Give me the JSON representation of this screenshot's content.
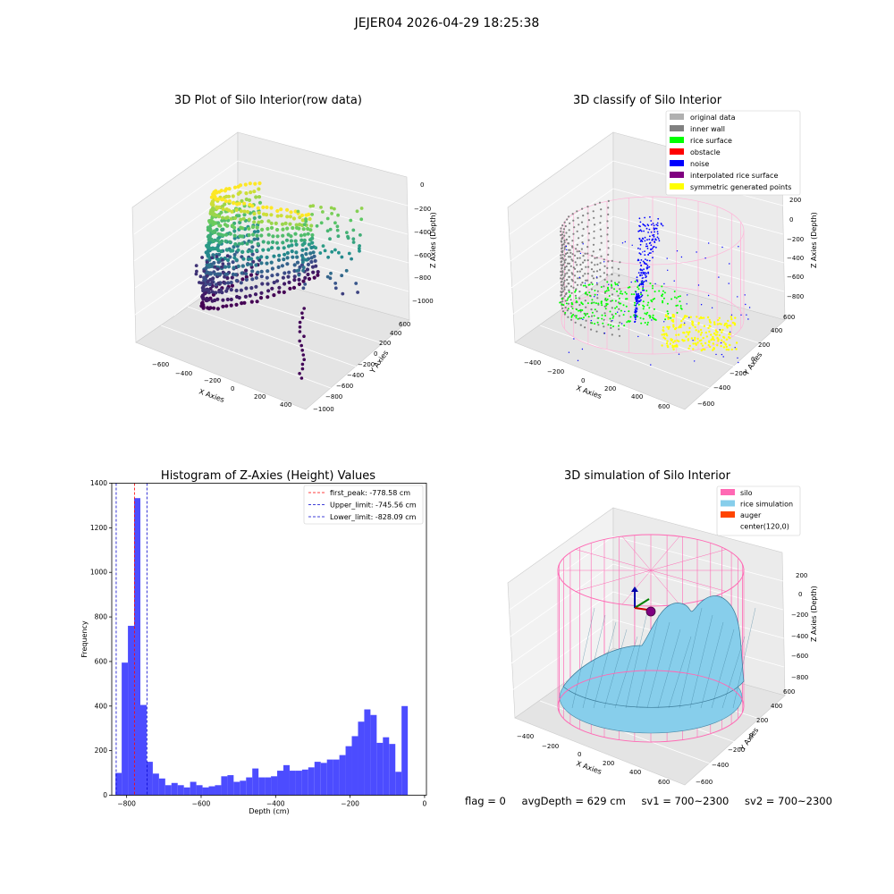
{
  "figure_title": "JEJER04 2026-04-29 18:25:38",
  "footer": {
    "flag": "flag = 0",
    "avg": "avgDepth = 629 cm",
    "sv1": "sv1 = 700~2300",
    "sv2": "sv2 = 700~2300"
  },
  "colors": {
    "hist_bar": "#4c4cff",
    "peak_line": "#ff0000",
    "limit_line": "#0000cc",
    "silo": "#ff69b4",
    "rice": "#87ceeb",
    "auger": "#ff4500"
  },
  "chart_data": [
    {
      "type": "scatter",
      "dimensions": 3,
      "title": "3D Plot of Silo Interior(row data)",
      "xlabel": "X Axies",
      "ylabel": "Y Axies",
      "zlabel": "Z Axies (Depth)",
      "x_ticks": [
        "−600",
        "−400",
        "−200",
        "0",
        "200",
        "400"
      ],
      "y_ticks": [
        "600",
        "400",
        "200",
        "0",
        "−200",
        "−400",
        "−600",
        "−800",
        "−1000"
      ],
      "z_ticks": [
        "0",
        "−200",
        "−400",
        "−600",
        "−800",
        "−1000"
      ],
      "colormap": "viridis"
    },
    {
      "type": "scatter",
      "dimensions": 3,
      "title": "3D classify of Silo Interior",
      "xlabel": "X Axies",
      "ylabel": "Y Axies",
      "zlabel": "Z Axies (Depth)",
      "x_ticks": [
        "−400",
        "−200",
        "0",
        "200",
        "400",
        "600"
      ],
      "y_ticks": [
        "600",
        "400",
        "200",
        "0",
        "−200",
        "−400",
        "−600"
      ],
      "z_ticks": [
        "200",
        "0",
        "−200",
        "−400",
        "−600",
        "−800"
      ],
      "legend_position": "top-right",
      "legend": [
        {
          "label": "original data",
          "color": "#b0b0b0"
        },
        {
          "label": "inner wall",
          "color": "#808080"
        },
        {
          "label": "rice surface",
          "color": "#00ff00"
        },
        {
          "label": "obstacle",
          "color": "#ff0000"
        },
        {
          "label": "noise",
          "color": "#0000ff"
        },
        {
          "label": "interpolated rice surface",
          "color": "#800080"
        },
        {
          "label": "symmetric generated points",
          "color": "#ffff00"
        }
      ]
    },
    {
      "type": "bar",
      "title": "Histogram of Z-Axies (Height) Values",
      "xlabel": "Depth (cm)",
      "ylabel": "Frequency",
      "xlim": [
        -840,
        5
      ],
      "ylim": [
        0,
        1400
      ],
      "x_ticks": [
        -800,
        -600,
        -400,
        -200,
        0
      ],
      "x_tick_labels": [
        "−800",
        "−600",
        "−400",
        "−200",
        "0"
      ],
      "y_ticks": [
        0,
        200,
        400,
        600,
        800,
        1000,
        1200,
        1400
      ],
      "bin_edges_start": -830,
      "bin_width": 16.7,
      "values": [
        100,
        595,
        760,
        1333,
        405,
        150,
        97,
        75,
        45,
        55,
        45,
        35,
        60,
        45,
        35,
        40,
        45,
        85,
        90,
        60,
        65,
        80,
        120,
        80,
        80,
        85,
        110,
        135,
        110,
        110,
        115,
        125,
        150,
        145,
        160,
        160,
        180,
        220,
        265,
        330,
        385,
        360,
        235,
        260,
        230,
        105,
        400
      ],
      "legend_position": "top-right",
      "lines": [
        {
          "label": "first_peak: -778.58 cm",
          "x": -778.58,
          "color": "#ff0000"
        },
        {
          "label": "Upper_limit: -745.56 cm",
          "x": -745.56,
          "color": "#0000cc"
        },
        {
          "label": "Lower_limit: -828.09 cm",
          "x": -828.09,
          "color": "#0000cc"
        }
      ]
    },
    {
      "type": "surface",
      "dimensions": 3,
      "title": "3D simulation of Silo Interior",
      "xlabel": "X Axies",
      "ylabel": "Y Axies",
      "zlabel": "Z Axies (Depth)",
      "x_ticks": [
        "−400",
        "−200",
        "0",
        "200",
        "400",
        "600"
      ],
      "y_ticks": [
        "600",
        "400",
        "200",
        "0",
        "−200",
        "−400",
        "−600"
      ],
      "z_ticks": [
        "200",
        "0",
        "−200",
        "−400",
        "−600",
        "−800"
      ],
      "legend_position": "top-right",
      "legend": [
        {
          "label": "silo",
          "color": "#ff69b4"
        },
        {
          "label": "rice simulation",
          "color": "#87ceeb"
        },
        {
          "label": "auger",
          "color": "#ff4500"
        },
        {
          "label": "center(120,0)",
          "color": "none"
        }
      ]
    }
  ]
}
